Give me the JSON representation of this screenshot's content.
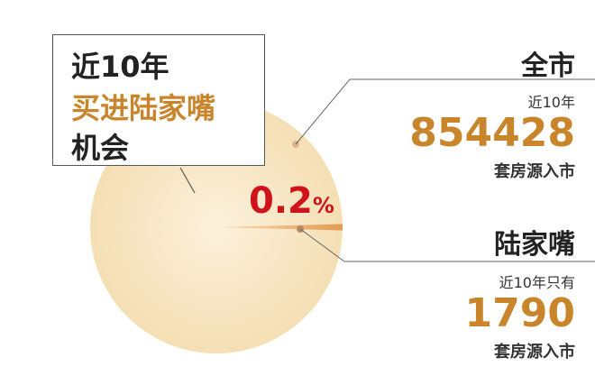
{
  "chart_data": {
    "type": "pie",
    "categories": [
      "全市",
      "陆家嘴"
    ],
    "values": [
      854428,
      1790
    ],
    "percent_label": "0.2",
    "percent_sign": "%",
    "colors": {
      "pie": "#f7e6c4",
      "slice": "#e8a060",
      "accent": "#c8852b",
      "highlight": "#d0121b"
    }
  },
  "box": {
    "line1": "近10年",
    "line2": "买进陆家嘴",
    "line3": "机会"
  },
  "city": {
    "title": "全市",
    "sub": "近10年",
    "value": "854428",
    "unit": "套房源入市"
  },
  "ljz": {
    "title": "陆家嘴",
    "sub": "近10年只有",
    "value": "1790",
    "unit": "套房源入市"
  }
}
